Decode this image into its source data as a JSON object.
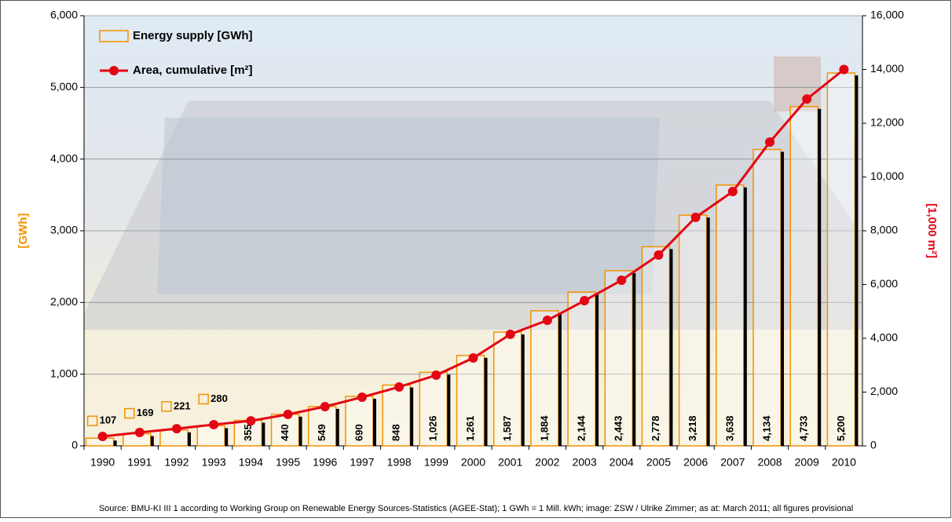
{
  "chart_data": {
    "type": "bar",
    "categories": [
      "1990",
      "1991",
      "1992",
      "1993",
      "1994",
      "1995",
      "1996",
      "1997",
      "1998",
      "1999",
      "2000",
      "2001",
      "2002",
      "2003",
      "2004",
      "2005",
      "2006",
      "2007",
      "2008",
      "2009",
      "2010"
    ],
    "series": [
      {
        "name": "Energy supply [GWh]",
        "color": "#f39200",
        "values": [
          107,
          169,
          221,
          280,
          355,
          440,
          549,
          690,
          848,
          1026,
          1261,
          1587,
          1884,
          2144,
          2443,
          2778,
          3218,
          3638,
          4134,
          4733,
          5200
        ],
        "value_labels": [
          "107",
          "169",
          "221",
          "280",
          "355",
          "440",
          "549",
          "690",
          "848",
          "1,026",
          "1,261",
          "1,587",
          "1,884",
          "2,144",
          "2,443",
          "2,778",
          "3,218",
          "3,638",
          "4,134",
          "4,733",
          "5,200"
        ]
      },
      {
        "name": "Area, cumulative [m²]",
        "color": "#e30613",
        "type": "line",
        "axis": "y2",
        "values": [
          350,
          500,
          640,
          790,
          930,
          1170,
          1460,
          1810,
          2190,
          2630,
          3270,
          4150,
          4670,
          5400,
          6160,
          7100,
          8500,
          9460,
          11300,
          12900,
          14000
        ]
      }
    ],
    "y_label": "[GWh]",
    "y2_label": "[1,000 m²]",
    "ylim": [
      0,
      6000
    ],
    "yticks": [
      0,
      {
        "value": 1000,
        "label": "1,000"
      },
      {
        "value": 2000,
        "label": "2,000"
      },
      {
        "value": 3000,
        "label": "3,000"
      },
      {
        "value": 4000,
        "label": "4,000"
      },
      {
        "value": 5000,
        "label": "5,000"
      },
      {
        "value": 6000,
        "label": "6,000"
      }
    ],
    "y2lim": [
      0,
      16000
    ],
    "y2ticks": [
      0,
      {
        "value": 2000,
        "label": "2,000"
      },
      {
        "value": 4000,
        "label": "4,000"
      },
      {
        "value": 6000,
        "label": "6,000"
      },
      {
        "value": 8000,
        "label": "8,000"
      },
      {
        "value": 10000,
        "label": "10,000"
      },
      {
        "value": 12000,
        "label": "12,000"
      },
      {
        "value": 14000,
        "label": "14,000"
      },
      {
        "value": 16000,
        "label": "16,000"
      }
    ],
    "grid": true,
    "legend": "top-left",
    "source": "Source: BMU-KI III 1 according to Working Group on Renewable Energy Sources-Statistics (AGEE-Stat); 1 GWh = 1 Mill. kWh; image: ZSW / Ulrike Zimmer; as at: March 2011; all figures provisional"
  }
}
